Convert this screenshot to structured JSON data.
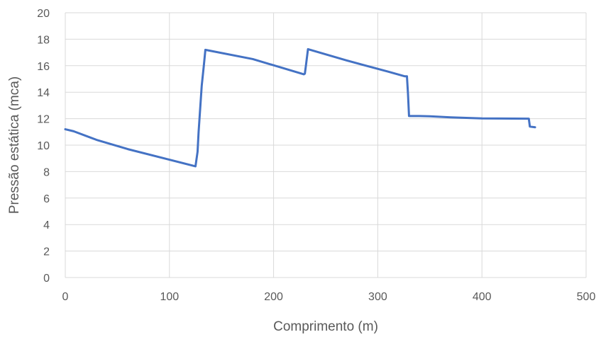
{
  "chart_data": {
    "type": "line",
    "title": "",
    "xlabel": "Comprimento (m)",
    "ylabel": "Pressão estática (mca)",
    "xlim": [
      0,
      500
    ],
    "ylim": [
      0,
      20
    ],
    "x_ticks": [
      0,
      100,
      200,
      300,
      400,
      500
    ],
    "y_ticks": [
      0,
      2,
      4,
      6,
      8,
      10,
      12,
      14,
      16,
      18,
      20
    ],
    "grid": true,
    "legend": "none",
    "colors": {
      "series": "#4472c4",
      "grid": "#d9d9d9",
      "text": "#595959"
    },
    "series": [
      {
        "color": "#4472c4",
        "points": [
          [
            0,
            11.2
          ],
          [
            8,
            11.05
          ],
          [
            30,
            10.4
          ],
          [
            60,
            9.7
          ],
          [
            100,
            8.9
          ],
          [
            125,
            8.4
          ],
          [
            127,
            9.5
          ],
          [
            128,
            11.0
          ],
          [
            131,
            14.5
          ],
          [
            133,
            16.0
          ],
          [
            134.5,
            17.2
          ],
          [
            180,
            16.5
          ],
          [
            229,
            15.35
          ],
          [
            230,
            15.4
          ],
          [
            231,
            16.0
          ],
          [
            233,
            17.25
          ],
          [
            270,
            16.4
          ],
          [
            310,
            15.55
          ],
          [
            326,
            15.2
          ],
          [
            328,
            15.2
          ],
          [
            329,
            13.9
          ],
          [
            330,
            12.2
          ],
          [
            340,
            12.2
          ],
          [
            350,
            12.18
          ],
          [
            370,
            12.1
          ],
          [
            400,
            12.02
          ],
          [
            445,
            12.0
          ],
          [
            446,
            11.4
          ],
          [
            451,
            11.35
          ]
        ]
      }
    ]
  }
}
